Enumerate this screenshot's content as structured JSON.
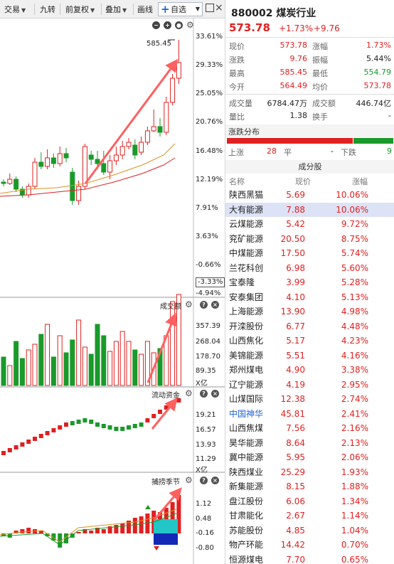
{
  "toolbar": {
    "items": [
      {
        "label": "交易",
        "drop": true
      },
      {
        "label": "九转",
        "drop": false
      },
      {
        "label": "前复权",
        "drop": true
      },
      {
        "label": "叠加",
        "drop": true
      },
      {
        "label": "画线",
        "drop": false
      }
    ],
    "favorite": {
      "icon": "+",
      "label": "自选"
    },
    "restore_icon": "restore-icon",
    "close_icon": "×"
  },
  "chart": {
    "price_axis": [
      "33.61%",
      "29.33%",
      "25.05%",
      "20.76%",
      "16.48%",
      "12.19%",
      "7.91%",
      "3.63%",
      "-0.66%",
      "-4.94%"
    ],
    "current_pct_tag": "-3.33%",
    "high_label": "585.45",
    "volume": {
      "title": "成交额",
      "axis": [
        "357.39",
        "268.04",
        "178.70",
        "89.35"
      ],
      "unit": "X亿"
    },
    "flow": {
      "title": "流动资金",
      "axis": [
        "19.21",
        "16.57",
        "13.93",
        "11.29"
      ],
      "unit": "X亿"
    },
    "season": {
      "title": "捕捞季节",
      "axis": [
        "1.12",
        "0.48",
        "-0.16",
        "-0.80"
      ]
    },
    "colors": {
      "up": "#e02020",
      "down": "#1a9a2a",
      "ma_short": "#e09020",
      "ma_long": "#e02020"
    }
  },
  "quote": {
    "code": "880002",
    "name": "煤炭行业",
    "price": "573.78",
    "change_pct": "+1.73%",
    "change": "+9.76",
    "stats": [
      {
        "label": "现价",
        "value": "573.78",
        "color": "red",
        "label2": "涨幅",
        "value2": "1.73%",
        "color2": "red"
      },
      {
        "label": "涨跌",
        "value": "9.76",
        "color": "red",
        "label2": "振幅",
        "value2": "5.44%",
        "color2": "black"
      },
      {
        "label": "最高",
        "value": "585.45",
        "color": "red",
        "label2": "最低",
        "value2": "554.79",
        "color2": "green"
      },
      {
        "label": "今开",
        "value": "564.49",
        "color": "red",
        "label2": "均价",
        "value2": "573.78",
        "color2": "red"
      }
    ],
    "stats2": [
      {
        "label": "成交量",
        "value": "6784.47万",
        "label2": "成交额",
        "value2": "446.74亿"
      },
      {
        "label": "量比",
        "value": "1.38",
        "label2": "换手",
        "value2": "-"
      }
    ],
    "distribution": {
      "title": "涨跌分布",
      "up_label": "上涨",
      "up_count": "28",
      "flat_label": "平",
      "flat_count": "-",
      "down_label": "下跌",
      "down_count": "9",
      "up_ratio": 0.757
    }
  },
  "components": {
    "title": "成分股",
    "headers": {
      "name": "名称",
      "price": "现价",
      "change": "涨幅"
    },
    "rows": [
      {
        "name": "陕西黑猫",
        "price": "5.69",
        "change": "10.06%"
      },
      {
        "name": "大有能源",
        "price": "7.88",
        "change": "10.06%",
        "selected": true
      },
      {
        "name": "云煤能源",
        "price": "5.42",
        "change": "9.72%"
      },
      {
        "name": "兖矿能源",
        "price": "20.50",
        "change": "8.75%"
      },
      {
        "name": "中煤能源",
        "price": "17.50",
        "change": "5.74%"
      },
      {
        "name": "兰花科创",
        "price": "6.98",
        "change": "5.60%"
      },
      {
        "name": "宝泰隆",
        "price": "3.99",
        "change": "5.28%"
      },
      {
        "name": "安泰集团",
        "price": "4.10",
        "change": "5.13%"
      },
      {
        "name": "上海能源",
        "price": "13.90",
        "change": "4.98%"
      },
      {
        "name": "开滦股份",
        "price": "6.77",
        "change": "4.48%"
      },
      {
        "name": "山西焦化",
        "price": "5.17",
        "change": "4.23%"
      },
      {
        "name": "美锦能源",
        "price": "5.51",
        "change": "4.16%"
      },
      {
        "name": "郑州煤电",
        "price": "4.90",
        "change": "3.38%"
      },
      {
        "name": "辽宁能源",
        "price": "4.19",
        "change": "2.95%"
      },
      {
        "name": "山煤国际",
        "price": "12.38",
        "change": "2.74%"
      },
      {
        "name": "中国神华",
        "price": "45.81",
        "change": "2.41%",
        "blue": true
      },
      {
        "name": "山西焦煤",
        "price": "7.56",
        "change": "2.16%"
      },
      {
        "name": "昊华能源",
        "price": "8.64",
        "change": "2.13%"
      },
      {
        "name": "冀中能源",
        "price": "5.95",
        "change": "2.06%"
      },
      {
        "name": "陕西煤业",
        "price": "25.29",
        "change": "1.93%"
      },
      {
        "name": "新集能源",
        "price": "8.15",
        "change": "1.88%"
      },
      {
        "name": "盘江股份",
        "price": "6.06",
        "change": "1.34%"
      },
      {
        "name": "甘肃能化",
        "price": "2.67",
        "change": "1.14%"
      },
      {
        "name": "苏能股份",
        "price": "4.85",
        "change": "1.04%"
      },
      {
        "name": "物产环能",
        "price": "14.42",
        "change": "0.70%"
      },
      {
        "name": "恒源煤电",
        "price": "7.70",
        "change": "0.65%"
      }
    ]
  }
}
